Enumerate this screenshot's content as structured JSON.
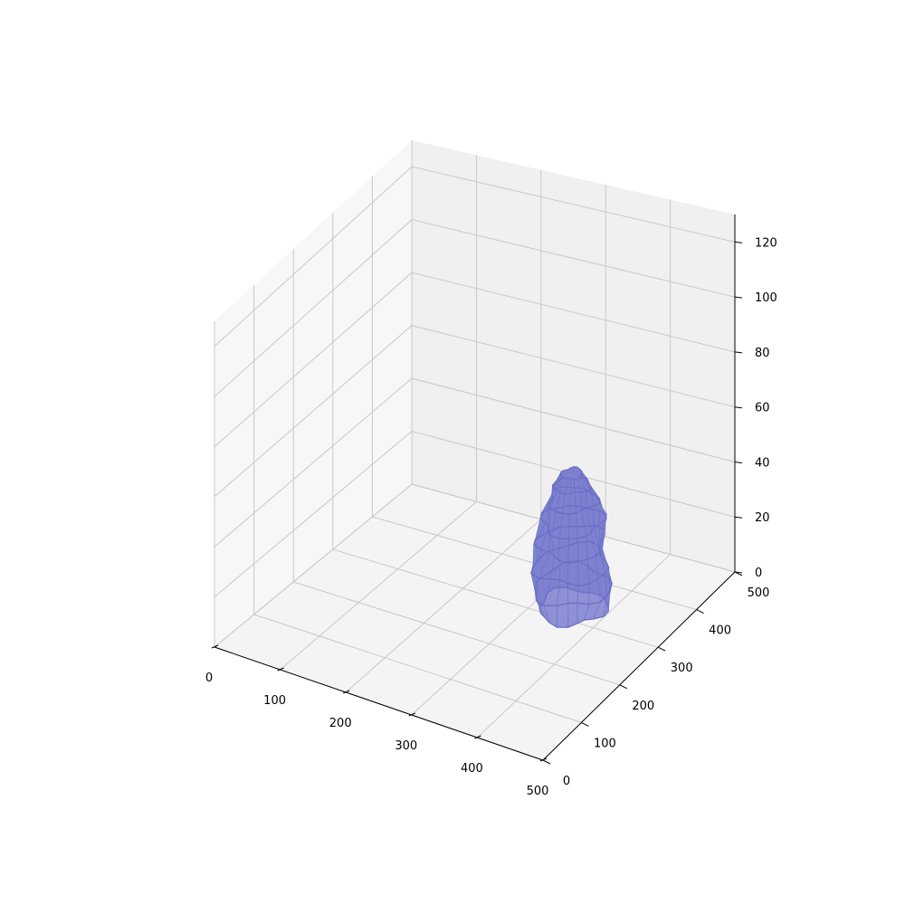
{
  "chart_data": {
    "type": "3d-surface",
    "title": "",
    "xlabel": "",
    "ylabel": "",
    "zlabel": "",
    "xlim": [
      0,
      500
    ],
    "ylim": [
      0,
      500
    ],
    "zlim": [
      0,
      130
    ],
    "grid": true,
    "x_ticks": [
      "0",
      "100",
      "200",
      "300",
      "400",
      "500"
    ],
    "y_ticks": [
      "0",
      "100",
      "200",
      "300",
      "400",
      "500"
    ],
    "z_ticks": [
      "0",
      "20",
      "40",
      "60",
      "80",
      "100",
      "120"
    ],
    "pane_colors": {
      "left": "#f7f7f7",
      "back": "#f0f0f0",
      "floor": "#f4f4f4"
    },
    "grid_color": "#c8c8c8",
    "surface": {
      "color": "#7b7fcf",
      "edge_color": "#6a6ec4",
      "alpha": 0.85,
      "center": {
        "x": 350,
        "y": 330
      },
      "z_range": [
        0,
        50
      ],
      "layers": [
        {
          "z": 0,
          "rx": 45,
          "ry": 45
        },
        {
          "z": 8,
          "rx": 50,
          "ry": 52
        },
        {
          "z": 16,
          "rx": 48,
          "ry": 50
        },
        {
          "z": 24,
          "rx": 44,
          "ry": 44
        },
        {
          "z": 32,
          "rx": 40,
          "ry": 40
        },
        {
          "z": 40,
          "rx": 32,
          "ry": 32
        },
        {
          "z": 46,
          "rx": 24,
          "ry": 24
        },
        {
          "z": 50,
          "rx": 14,
          "ry": 14
        }
      ]
    }
  }
}
